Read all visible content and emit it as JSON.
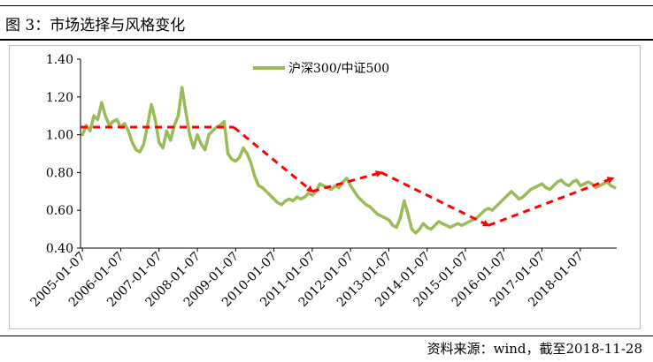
{
  "figure": {
    "title": "图 3：市场选择与风格变化",
    "source": "资料来源：wind，截至2018-11-28"
  },
  "chart_data": {
    "type": "line",
    "title": "",
    "xlabel": "",
    "ylabel": "",
    "ylim": [
      0.4,
      1.4
    ],
    "yticks": [
      "1.40",
      "1.20",
      "1.00",
      "0.80",
      "0.60",
      "0.40"
    ],
    "xticks": [
      "2005-01-07",
      "2006-01-07",
      "2007-01-07",
      "2008-01-07",
      "2009-01-07",
      "2010-01-07",
      "2011-01-07",
      "2012-01-07",
      "2013-01-07",
      "2014-01-07",
      "2015-01-07",
      "2016-01-07",
      "2017-01-07",
      "2018-01-07"
    ],
    "grid": false,
    "legend_position": "top-center",
    "series": [
      {
        "name": "沪深300/中证500",
        "color": "#9bbb59",
        "x": [
          2005.0,
          2005.1,
          2005.2,
          2005.3,
          2005.4,
          2005.5,
          2005.6,
          2005.7,
          2005.8,
          2005.9,
          2006.0,
          2006.1,
          2006.2,
          2006.3,
          2006.4,
          2006.5,
          2006.6,
          2006.7,
          2006.8,
          2006.9,
          2007.0,
          2007.1,
          2007.2,
          2007.3,
          2007.4,
          2007.5,
          2007.6,
          2007.7,
          2007.8,
          2007.9,
          2008.0,
          2008.1,
          2008.2,
          2008.3,
          2008.4,
          2008.5,
          2008.6,
          2008.7,
          2008.8,
          2008.9,
          2009.0,
          2009.1,
          2009.2,
          2009.3,
          2009.4,
          2009.5,
          2009.6,
          2009.7,
          2009.8,
          2009.9,
          2010.0,
          2010.1,
          2010.2,
          2010.3,
          2010.4,
          2010.5,
          2010.6,
          2010.7,
          2010.8,
          2010.9,
          2011.0,
          2011.1,
          2011.2,
          2011.3,
          2011.4,
          2011.5,
          2011.6,
          2011.7,
          2011.8,
          2011.9,
          2012.0,
          2012.1,
          2012.2,
          2012.3,
          2012.4,
          2012.5,
          2012.6,
          2012.7,
          2012.8,
          2012.9,
          2013.0,
          2013.1,
          2013.2,
          2013.3,
          2013.4,
          2013.5,
          2013.6,
          2013.7,
          2013.8,
          2013.9,
          2014.0,
          2014.1,
          2014.2,
          2014.3,
          2014.4,
          2014.5,
          2014.6,
          2014.7,
          2014.8,
          2014.9,
          2015.0,
          2015.1,
          2015.2,
          2015.3,
          2015.4,
          2015.5,
          2015.6,
          2015.7,
          2015.8,
          2015.9,
          2016.0,
          2016.1,
          2016.2,
          2016.3,
          2016.4,
          2016.5,
          2016.6,
          2016.7,
          2016.8,
          2016.9,
          2017.0,
          2017.1,
          2017.2,
          2017.3,
          2017.4,
          2017.5,
          2017.6,
          2017.7,
          2017.8,
          2017.9,
          2018.0,
          2018.1,
          2018.2,
          2018.3,
          2018.4,
          2018.5,
          2018.6,
          2018.7,
          2018.8,
          2018.9
        ],
        "values": [
          1.0,
          1.05,
          1.02,
          1.1,
          1.08,
          1.17,
          1.1,
          1.05,
          1.07,
          1.08,
          1.04,
          1.06,
          1.02,
          0.96,
          0.92,
          0.91,
          0.95,
          1.05,
          1.16,
          1.08,
          0.96,
          0.93,
          1.02,
          0.97,
          1.05,
          1.1,
          1.25,
          1.12,
          1.0,
          0.93,
          1.0,
          0.95,
          0.92,
          1.0,
          1.02,
          1.04,
          1.05,
          1.07,
          0.9,
          0.87,
          0.86,
          0.88,
          0.93,
          0.9,
          0.85,
          0.78,
          0.73,
          0.72,
          0.7,
          0.68,
          0.66,
          0.64,
          0.63,
          0.65,
          0.66,
          0.65,
          0.67,
          0.66,
          0.67,
          0.69,
          0.68,
          0.7,
          0.74,
          0.73,
          0.72,
          0.71,
          0.73,
          0.72,
          0.75,
          0.77,
          0.73,
          0.7,
          0.67,
          0.65,
          0.63,
          0.62,
          0.6,
          0.58,
          0.57,
          0.56,
          0.55,
          0.52,
          0.51,
          0.56,
          0.65,
          0.58,
          0.5,
          0.48,
          0.5,
          0.53,
          0.51,
          0.5,
          0.52,
          0.54,
          0.53,
          0.52,
          0.51,
          0.52,
          0.53,
          0.52,
          0.53,
          0.54,
          0.55,
          0.56,
          0.58,
          0.6,
          0.61,
          0.6,
          0.62,
          0.64,
          0.66,
          0.68,
          0.7,
          0.68,
          0.66,
          0.67,
          0.69,
          0.71,
          0.72,
          0.73,
          0.74,
          0.72,
          0.71,
          0.73,
          0.75,
          0.76,
          0.74,
          0.73,
          0.75,
          0.76,
          0.73,
          0.74,
          0.75,
          0.74,
          0.72,
          0.73,
          0.74,
          0.75,
          0.73,
          0.72
        ]
      }
    ],
    "annotation_arrows": {
      "color": "#ff0000",
      "style": "dashed",
      "segments": [
        {
          "from": [
            2004.95,
            1.04
          ],
          "to": [
            2008.95,
            1.04
          ]
        },
        {
          "from": [
            2008.95,
            1.04
          ],
          "to": [
            2011.0,
            0.7
          ]
        },
        {
          "from": [
            2011.0,
            0.7
          ],
          "to": [
            2012.8,
            0.8
          ]
        },
        {
          "from": [
            2012.8,
            0.8
          ],
          "to": [
            2015.6,
            0.52
          ]
        },
        {
          "from": [
            2015.6,
            0.52
          ],
          "to": [
            2018.85,
            0.77
          ]
        }
      ]
    }
  }
}
